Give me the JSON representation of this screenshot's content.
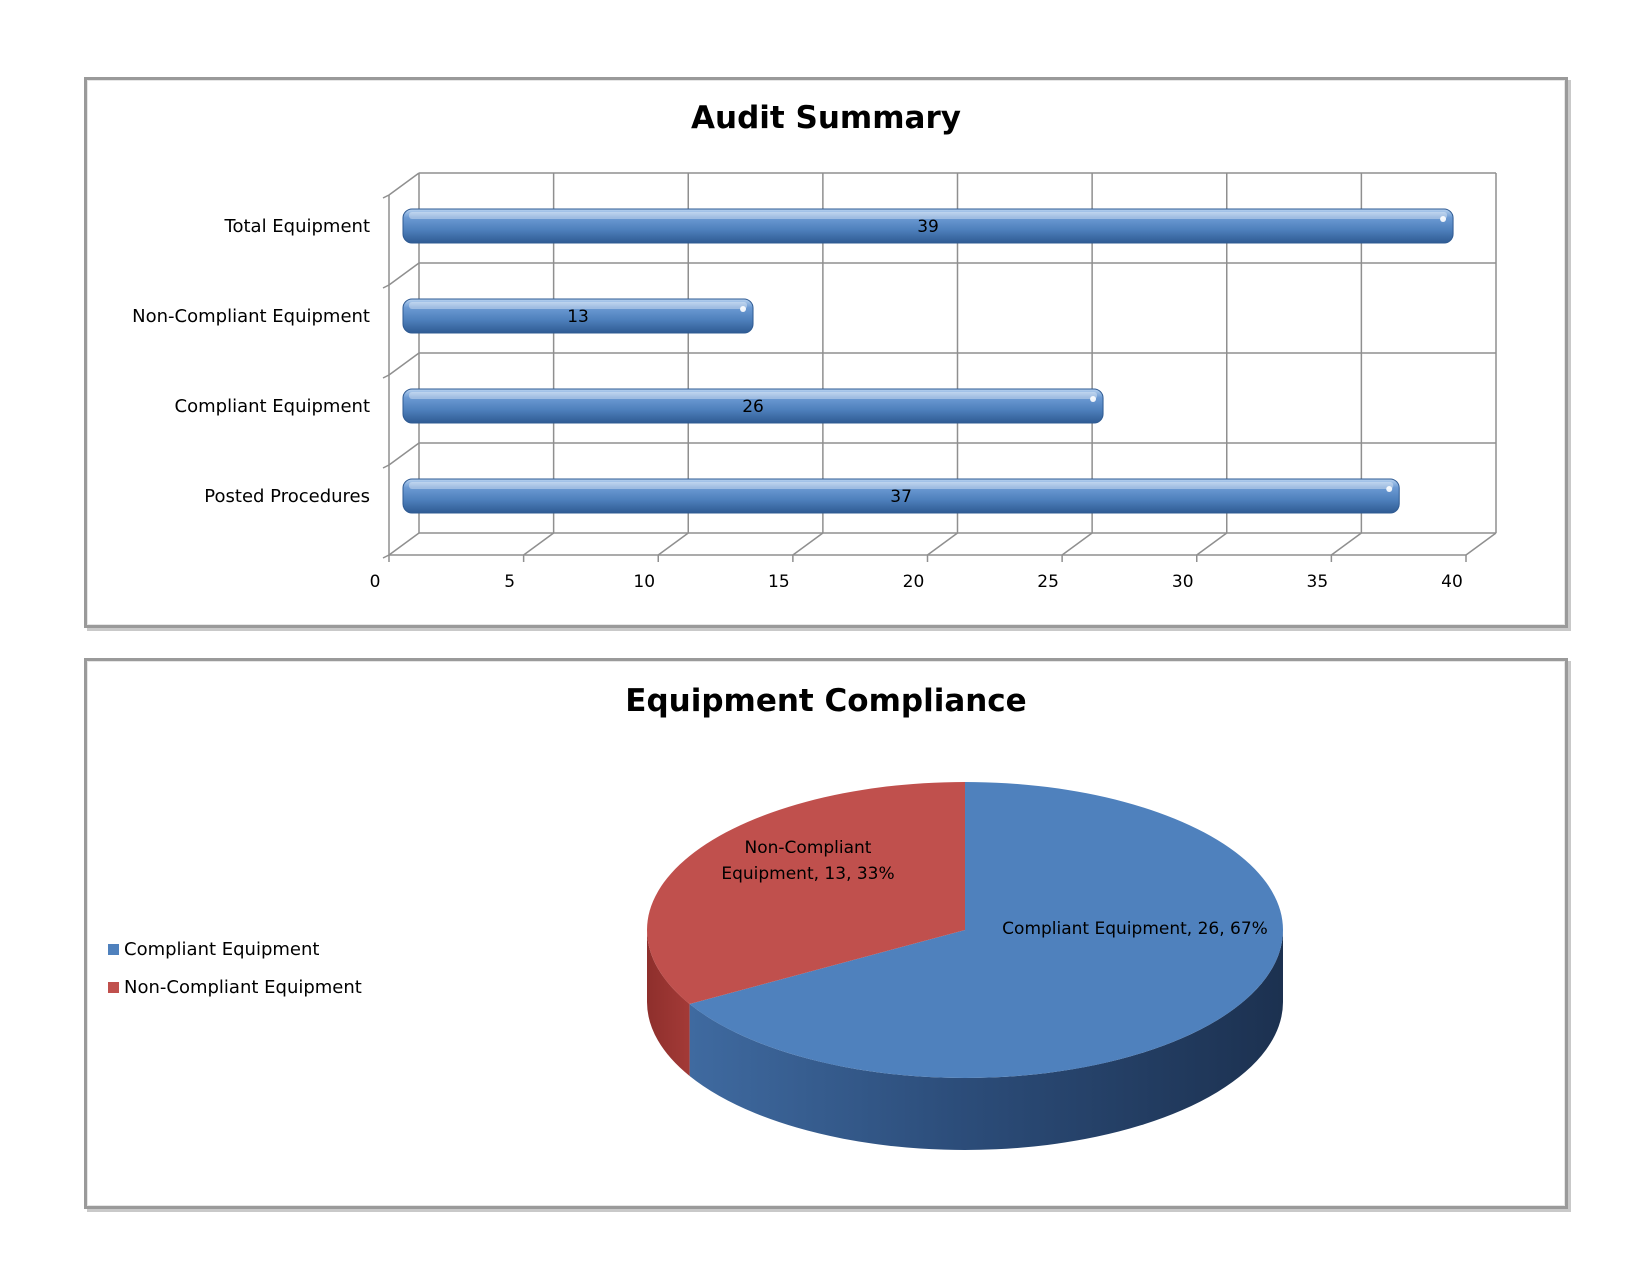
{
  "chart_data": [
    {
      "type": "bar",
      "orientation": "horizontal",
      "title": "Audit Summary",
      "categories": [
        "Total Equipment",
        "Non-Compliant Equipment",
        "Compliant Equipment",
        "Posted Procedures"
      ],
      "values": [
        39,
        13,
        26,
        37
      ],
      "data_labels": [
        "39",
        "13",
        "26",
        "37"
      ],
      "xticks": [
        "0",
        "5",
        "10",
        "15",
        "20",
        "25",
        "30",
        "35",
        "40"
      ],
      "xlim": [
        0,
        40
      ],
      "grid": true,
      "color": "#4f81bd"
    },
    {
      "type": "pie",
      "title": "Equipment Compliance",
      "slices": [
        {
          "label": "Compliant Equipment",
          "value": 26,
          "percent": 67,
          "color": "#4f81bd",
          "data_label": "Compliant Equipment, 26, 67%"
        },
        {
          "label": "Non-Compliant Equipment",
          "value": 13,
          "percent": 33,
          "color": "#c0504d",
          "data_label_lines": [
            "Non-Compliant",
            "Equipment, 13, 33%"
          ]
        }
      ],
      "legend": {
        "position": "left",
        "entries": [
          "Compliant Equipment",
          "Non-Compliant Equipment"
        ]
      }
    }
  ]
}
